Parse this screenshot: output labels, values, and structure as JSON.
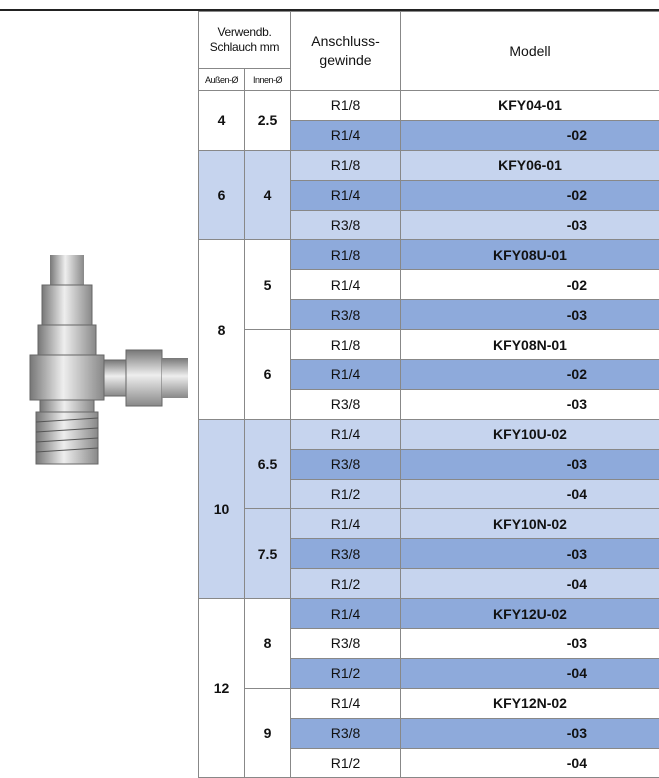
{
  "header": {
    "group_title": "Verwendb.\nSchlauch mm",
    "outer": "Außen-Ø",
    "inner": "Innen-Ø",
    "thread": "Anschluss-\ngewinde",
    "model": "Modell"
  },
  "groups": [
    {
      "outer": "4",
      "inner": [
        {
          "size": "2.5",
          "rows": [
            [
              "R1/8",
              "KFY04-01"
            ],
            [
              "R1/4",
              "-02"
            ]
          ]
        }
      ]
    },
    {
      "outer": "6",
      "inner": [
        {
          "size": "4",
          "rows": [
            [
              "R1/8",
              "KFY06-01"
            ],
            [
              "R1/4",
              "-02"
            ],
            [
              "R3/8",
              "-03"
            ]
          ]
        }
      ]
    },
    {
      "outer": "8",
      "inner": [
        {
          "size": "5",
          "rows": [
            [
              "R1/8",
              "KFY08U-01"
            ],
            [
              "R1/4",
              "-02"
            ],
            [
              "R3/8",
              "-03"
            ]
          ]
        },
        {
          "size": "6",
          "rows": [
            [
              "R1/8",
              "KFY08N-01"
            ],
            [
              "R1/4",
              "-02"
            ],
            [
              "R3/8",
              "-03"
            ]
          ]
        }
      ]
    },
    {
      "outer": "10",
      "inner": [
        {
          "size": "6.5",
          "rows": [
            [
              "R1/4",
              "KFY10U-02"
            ],
            [
              "R3/8",
              "-03"
            ],
            [
              "R1/2",
              "-04"
            ]
          ]
        },
        {
          "size": "7.5",
          "rows": [
            [
              "R1/4",
              "KFY10N-02"
            ],
            [
              "R3/8",
              "-03"
            ],
            [
              "R1/2",
              "-04"
            ]
          ]
        }
      ]
    },
    {
      "outer": "12",
      "inner": [
        {
          "size": "8",
          "rows": [
            [
              "R1/4",
              "KFY12U-02"
            ],
            [
              "R3/8",
              "-03"
            ],
            [
              "R1/2",
              "-04"
            ]
          ]
        },
        {
          "size": "9",
          "rows": [
            [
              "R1/4",
              "KFY12N-02"
            ],
            [
              "R3/8",
              "-03"
            ],
            [
              "R1/2",
              "-04"
            ]
          ]
        }
      ]
    }
  ]
}
